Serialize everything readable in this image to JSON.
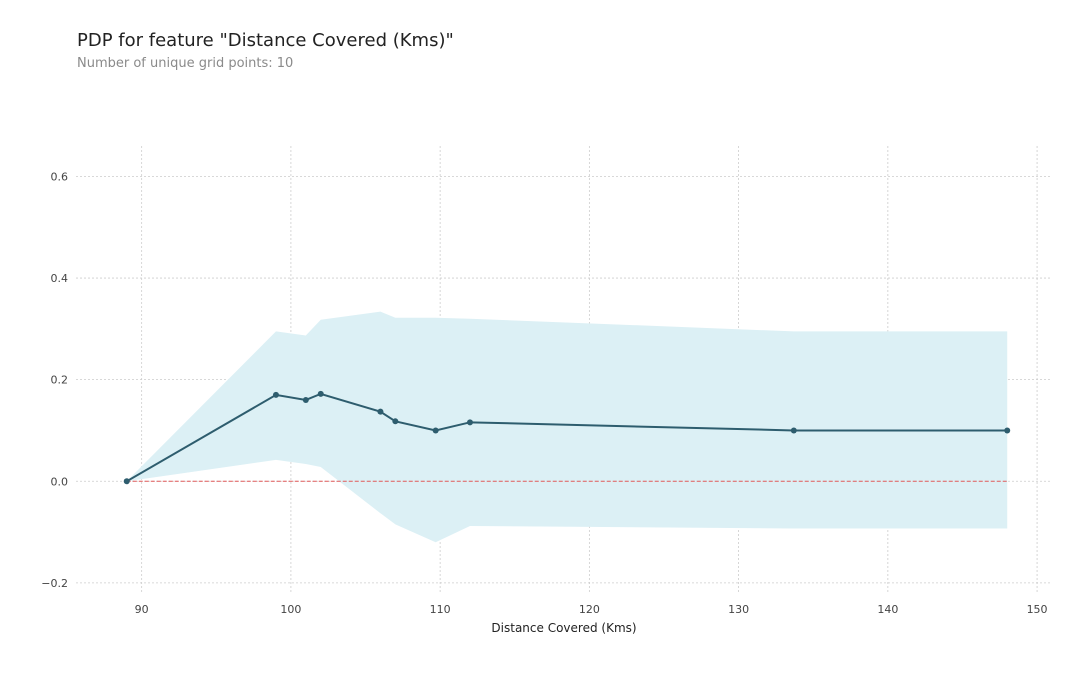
{
  "header": {
    "title": "PDP for feature \"Distance Covered (Kms)\"",
    "subtitle": "Number of unique grid points: 10"
  },
  "colors": {
    "line": "#2e5d6e",
    "band": "#dcf0f5",
    "zero_line": "#e05a5a",
    "grid": "#cccccc"
  },
  "chart_data": {
    "type": "line",
    "title": "PDP for feature \"Distance Covered (Kms)\"",
    "subtitle": "Number of unique grid points: 10",
    "xlabel": "Distance Covered (Kms)",
    "ylabel": "",
    "xlim": [
      85.6,
      151
    ],
    "ylim": [
      -0.22,
      0.66
    ],
    "xticks": [
      90,
      100,
      110,
      120,
      130,
      140,
      150
    ],
    "yticks": [
      -0.2,
      0.0,
      0.2,
      0.4,
      0.6
    ],
    "ytick_labels": [
      "−0.2",
      "0.0",
      "0.2",
      "0.4",
      "0.6"
    ],
    "grid": true,
    "series": [
      {
        "x": [
          89,
          99,
          101,
          102,
          106,
          107,
          109.7,
          112,
          133.7,
          148
        ],
        "y": [
          0.0,
          0.17,
          0.16,
          0.172,
          0.137,
          0.118,
          0.1,
          0.116,
          0.1,
          0.1
        ]
      }
    ],
    "band": {
      "x": [
        89,
        99,
        101,
        102,
        106,
        107,
        109.7,
        112,
        133.7,
        148
      ],
      "upper": [
        0.0,
        0.295,
        0.287,
        0.318,
        0.334,
        0.322,
        0.322,
        0.32,
        0.295,
        0.295
      ],
      "lower": [
        0.0,
        0.042,
        0.034,
        0.028,
        -0.063,
        -0.085,
        -0.12,
        -0.088,
        -0.093,
        -0.093
      ]
    },
    "reference_line": {
      "y": 0.0,
      "x_range": [
        89,
        148
      ]
    }
  }
}
